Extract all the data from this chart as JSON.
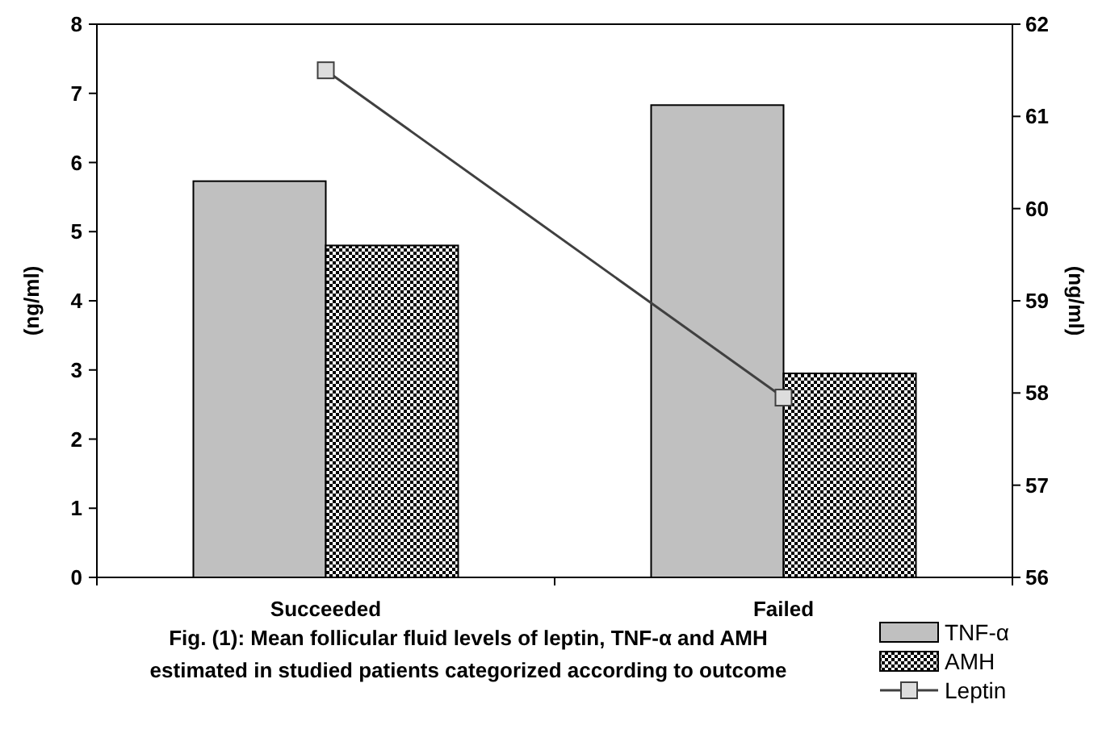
{
  "chart_data": {
    "type": "bar",
    "categories": [
      "Succeeded",
      "Failed"
    ],
    "ylabel": "(ng/ml)",
    "y2label": "(ng/ml)",
    "ylim": [
      0,
      8
    ],
    "yticks": [
      0,
      1,
      2,
      3,
      4,
      5,
      6,
      7,
      8
    ],
    "y2lim": [
      56,
      62
    ],
    "y2ticks": [
      56,
      57,
      58,
      59,
      60,
      61,
      62
    ],
    "legend": "bottom right",
    "grid": false,
    "series": [
      {
        "name": "TNF-α",
        "color": "#c0c0c0",
        "values": [
          5.73,
          6.83
        ]
      },
      {
        "name": "AMH",
        "color": "#000000",
        "values": [
          4.8,
          2.95
        ]
      },
      {
        "name": "Leptin",
        "type": "line",
        "axis": "y2",
        "color": "#404040",
        "marker": "square",
        "values": [
          61.5,
          57.95
        ]
      }
    ],
    "annotations": [
      "Fig. (1): Mean follicular fluid levels of leptin, TNF-α and AMH estimated in studied patients categorized according to outcome"
    ]
  }
}
